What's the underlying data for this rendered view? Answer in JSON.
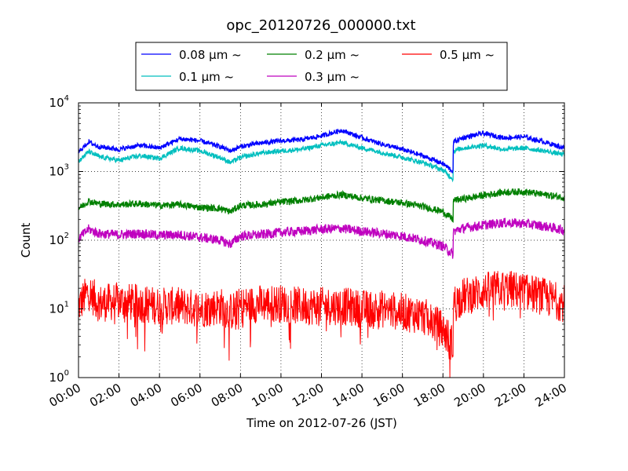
{
  "chart_data": {
    "type": "line",
    "title": "opc_20120726_000000.txt",
    "xlabel": "Time on 2012-07-26 (JST)",
    "ylabel": "Count",
    "x_range": [
      "00:00",
      "24:00"
    ],
    "x_ticks": [
      "00:00",
      "02:00",
      "04:00",
      "06:00",
      "08:00",
      "10:00",
      "12:00",
      "14:00",
      "16:00",
      "18:00",
      "20:00",
      "22:00",
      "24:00"
    ],
    "y_scale": "log",
    "ylim": [
      1,
      10000
    ],
    "y_ticks": [
      {
        "base": "10",
        "exp": "0"
      },
      {
        "base": "10",
        "exp": "1"
      },
      {
        "base": "10",
        "exp": "2"
      },
      {
        "base": "10",
        "exp": "3"
      },
      {
        "base": "10",
        "exp": "4"
      }
    ],
    "grid": true,
    "legend_position": "top-center",
    "x": [
      "00:00",
      "00:30",
      "01:00",
      "02:00",
      "03:00",
      "04:00",
      "05:00",
      "06:00",
      "07:00",
      "07:30",
      "08:00",
      "09:00",
      "10:00",
      "11:00",
      "12:00",
      "13:00",
      "14:00",
      "15:00",
      "16:00",
      "17:00",
      "18:00",
      "18:30",
      "18:31",
      "19:00",
      "20:00",
      "21:00",
      "22:00",
      "23:00",
      "24:00"
    ],
    "series": [
      {
        "name": "0.08 μm ~",
        "color": "#0000ff",
        "values": [
          1900,
          2700,
          2300,
          2100,
          2400,
          2200,
          3000,
          2800,
          2300,
          2000,
          2300,
          2600,
          2800,
          2900,
          3300,
          4000,
          3100,
          2500,
          2100,
          1700,
          1300,
          1000,
          2700,
          3100,
          3600,
          3100,
          3200,
          2700,
          2200
        ]
      },
      {
        "name": "0.1 μm ~",
        "color": "#00bfbf",
        "values": [
          1400,
          1950,
          1650,
          1450,
          1700,
          1550,
          2200,
          2000,
          1600,
          1350,
          1600,
          1850,
          2000,
          2100,
          2400,
          2650,
          2200,
          1900,
          1600,
          1350,
          1050,
          780,
          2000,
          2200,
          2400,
          2100,
          2200,
          2000,
          1750
        ]
      },
      {
        "name": "0.2 μm ~",
        "color": "#008000",
        "values": [
          290,
          370,
          340,
          330,
          340,
          320,
          330,
          300,
          290,
          260,
          320,
          330,
          360,
          380,
          420,
          460,
          410,
          380,
          350,
          310,
          260,
          200,
          380,
          400,
          450,
          500,
          510,
          460,
          420
        ]
      },
      {
        "name": "0.3 μm ~",
        "color": "#bf00bf",
        "values": [
          105,
          145,
          125,
          120,
          125,
          118,
          120,
          110,
          100,
          88,
          115,
          120,
          130,
          135,
          145,
          148,
          135,
          125,
          115,
          100,
          82,
          62,
          135,
          150,
          165,
          180,
          175,
          160,
          140
        ]
      },
      {
        "name": "0.5 μm ~",
        "color": "#ff0000",
        "values": [
          11,
          18,
          12,
          13,
          12,
          11,
          11,
          10,
          11,
          9,
          11,
          12,
          12,
          11,
          11,
          11,
          10,
          10,
          9,
          8,
          5,
          3,
          12,
          15,
          18,
          20,
          18,
          15,
          12
        ]
      }
    ]
  }
}
